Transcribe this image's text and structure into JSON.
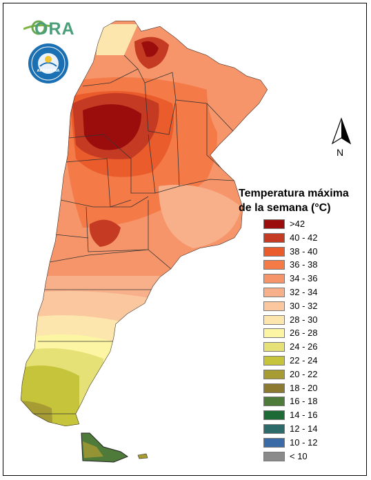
{
  "logo": {
    "text": "ORA"
  },
  "seal": {
    "text": "ARGENTINA"
  },
  "north_arrow": {
    "label": "N"
  },
  "legend": {
    "title_line1": "Temperatura máxima",
    "title_line2": "de la semana (°C)",
    "classes": [
      {
        "label": ">42",
        "color": "#9b0d0d"
      },
      {
        "label": "40 - 42",
        "color": "#c43a22"
      },
      {
        "label": "38 - 40",
        "color": "#ea5c2c"
      },
      {
        "label": "36 - 38",
        "color": "#f47a48"
      },
      {
        "label": "34 - 36",
        "color": "#f6956a"
      },
      {
        "label": "32 - 34",
        "color": "#f8b08a"
      },
      {
        "label": "30 - 32",
        "color": "#fbc79f"
      },
      {
        "label": "28 - 30",
        "color": "#fde6ad"
      },
      {
        "label": "26 - 28",
        "color": "#fcf6a4"
      },
      {
        "label": "24 - 26",
        "color": "#e6e176"
      },
      {
        "label": "22 - 24",
        "color": "#c6c43a"
      },
      {
        "label": "20 - 22",
        "color": "#a79b33"
      },
      {
        "label": "18 - 20",
        "color": "#8b7a2f"
      },
      {
        "label": "16 - 18",
        "color": "#4e7a3a"
      },
      {
        "label": "14 - 16",
        "color": "#1d6a36"
      },
      {
        "label": "12 - 14",
        "color": "#2d6a6a"
      },
      {
        "label": "10 - 12",
        "color": "#3b6ba6"
      },
      {
        "label": "< 10",
        "color": "#8a8a8a"
      }
    ]
  }
}
